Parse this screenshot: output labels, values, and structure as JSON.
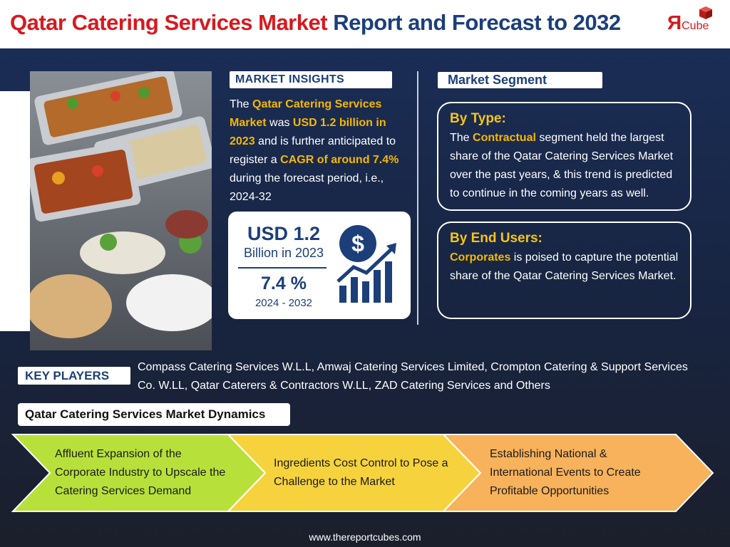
{
  "header": {
    "title_part1": "Qatar Catering Services Market",
    "title_part2": "Report and Forecast to 2032",
    "logo_mark": "Я",
    "logo_text": "Cube"
  },
  "insights": {
    "heading": "MARKET INSIGHTS",
    "segments": [
      {
        "text": "The ",
        "highlight": false
      },
      {
        "text": "Qatar Catering Services Market",
        "highlight": true
      },
      {
        "text": " was ",
        "highlight": false
      },
      {
        "text": "USD 1.2 billion in 2023",
        "highlight": true
      },
      {
        "text": " and is further anticipated to register a ",
        "highlight": false
      },
      {
        "text": "CAGR of around 7.4%",
        "highlight": true
      },
      {
        "text": " during the forecast period, i.e., 2024-32",
        "highlight": false
      }
    ]
  },
  "stats": {
    "value": "USD 1.2",
    "unit": "Billion in 2023",
    "cagr": "7.4 %",
    "period": "2024 - 2032"
  },
  "segment": {
    "heading": "Market Segment",
    "blocks": [
      {
        "title": "By Type:",
        "segments": [
          {
            "text": "The ",
            "highlight": false
          },
          {
            "text": "Contractual",
            "highlight": true
          },
          {
            "text": " segment held the largest share of the Qatar Catering Services Market over the past years, & this trend is predicted to continue in the coming years as well.",
            "highlight": false
          }
        ]
      },
      {
        "title": "By End Users:",
        "segments": [
          {
            "text": "Corporates",
            "highlight": true
          },
          {
            "text": " is poised to capture the potential share of the Qatar Catering Services Market.",
            "highlight": false
          }
        ]
      }
    ]
  },
  "key_players": {
    "label": "KEY PLAYERS",
    "text": "Compass Catering Services W.L.L, Amwaj Catering Services Limited, Crompton Catering & Support Services Co. W.LL, Qatar Caterers & Contractors W.LL, ZAD Catering Services and Others"
  },
  "dynamics": {
    "heading": "Qatar Catering Services Market Dynamics",
    "items": [
      "Affluent Expansion of the Corporate Industry to Upscale the Catering Services Demand",
      "Ingredients Cost Control to Pose a Challenge to the Market",
      "Establishing National & International Events to Create Profitable Opportunities"
    ]
  },
  "footer": {
    "url": "www.thereportcubes.com"
  }
}
